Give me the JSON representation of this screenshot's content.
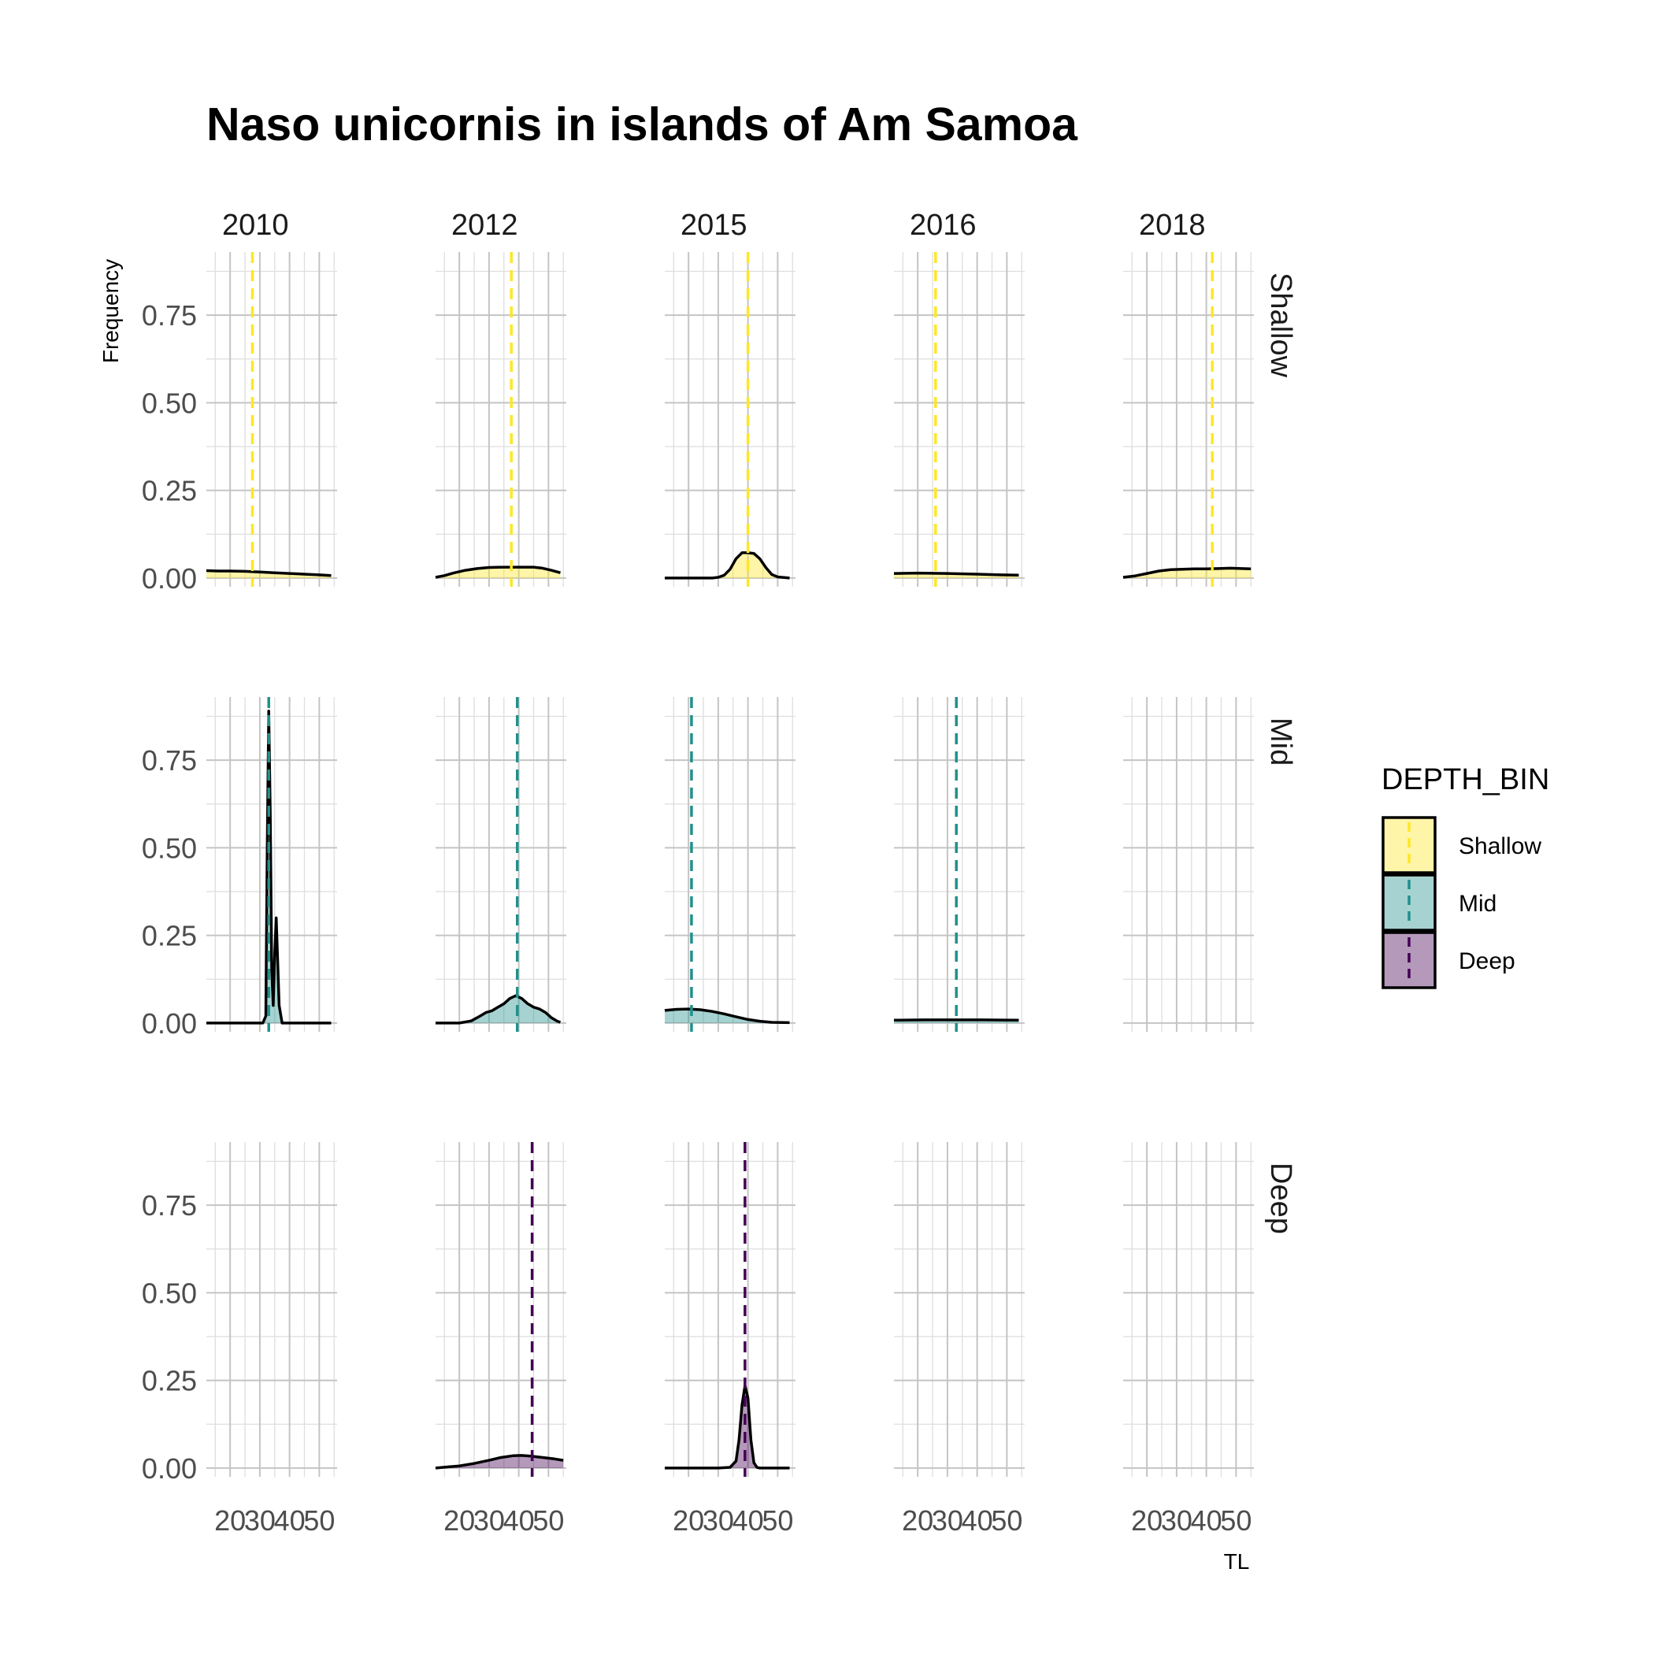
{
  "chart_data": {
    "type": "area",
    "title": "Naso unicornis in islands of Am Samoa",
    "xlabel": "TL",
    "ylabel": "Frequency",
    "columns": [
      "2010",
      "2012",
      "2015",
      "2016",
      "2018"
    ],
    "rows": [
      "Shallow",
      "Mid",
      "Deep"
    ],
    "xlim": [
      12,
      56
    ],
    "ylim": [
      -0.025,
      0.93
    ],
    "x_ticks": [
      20,
      30,
      40,
      50
    ],
    "x_tick_labels": [
      "20",
      "30",
      "40",
      "50"
    ],
    "y_ticks": [
      0,
      0.25,
      0.5,
      0.75
    ],
    "y_tick_labels": [
      "0.00",
      "0.25",
      "0.50",
      "0.75"
    ],
    "grid": true,
    "legend": {
      "title": "DEPTH_BIN",
      "placement": "right",
      "items": [
        {
          "label": "Shallow",
          "color": "#FDE725"
        },
        {
          "label": "Mid",
          "color": "#21908C"
        },
        {
          "label": "Deep",
          "color": "#440154"
        }
      ]
    },
    "panels": [
      {
        "column": "2010",
        "row": "Shallow",
        "mean": 27.5,
        "density": [
          [
            12,
            0.021
          ],
          [
            16,
            0.02
          ],
          [
            20,
            0.02
          ],
          [
            25,
            0.019
          ],
          [
            30,
            0.017
          ],
          [
            35,
            0.015
          ],
          [
            40,
            0.013
          ],
          [
            45,
            0.011
          ],
          [
            50,
            0.009
          ],
          [
            54,
            0.007
          ]
        ]
      },
      {
        "column": "2012",
        "row": "Shallow",
        "mean": 37.5,
        "density": [
          [
            12,
            0.002
          ],
          [
            15,
            0.007
          ],
          [
            18,
            0.014
          ],
          [
            22,
            0.022
          ],
          [
            26,
            0.027
          ],
          [
            30,
            0.03
          ],
          [
            35,
            0.031
          ],
          [
            40,
            0.031
          ],
          [
            45,
            0.031
          ],
          [
            48,
            0.028
          ],
          [
            51,
            0.022
          ],
          [
            54,
            0.015
          ]
        ]
      },
      {
        "column": "2015",
        "row": "Shallow",
        "mean": 40.0,
        "density": [
          [
            12,
            0.0
          ],
          [
            20,
            0.0
          ],
          [
            28,
            0.0
          ],
          [
            30,
            0.002
          ],
          [
            32,
            0.008
          ],
          [
            34,
            0.025
          ],
          [
            36,
            0.055
          ],
          [
            38,
            0.072
          ],
          [
            40,
            0.072
          ],
          [
            42,
            0.07
          ],
          [
            44,
            0.055
          ],
          [
            46,
            0.03
          ],
          [
            48,
            0.01
          ],
          [
            50,
            0.003
          ],
          [
            54,
            0.0
          ]
        ]
      },
      {
        "column": "2016",
        "row": "Shallow",
        "mean": 26.0,
        "density": [
          [
            12,
            0.013
          ],
          [
            20,
            0.014
          ],
          [
            30,
            0.013
          ],
          [
            40,
            0.011
          ],
          [
            48,
            0.009
          ],
          [
            54,
            0.008
          ]
        ]
      },
      {
        "column": "2018",
        "row": "Shallow",
        "mean": 42.0,
        "density": [
          [
            12,
            0.002
          ],
          [
            16,
            0.006
          ],
          [
            20,
            0.013
          ],
          [
            24,
            0.02
          ],
          [
            28,
            0.024
          ],
          [
            32,
            0.025
          ],
          [
            36,
            0.026
          ],
          [
            40,
            0.026
          ],
          [
            44,
            0.027
          ],
          [
            48,
            0.028
          ],
          [
            52,
            0.027
          ],
          [
            55,
            0.026
          ]
        ]
      },
      {
        "column": "2010",
        "row": "Mid",
        "mean": 33.0,
        "density": [
          [
            12,
            0.0
          ],
          [
            28,
            0.0
          ],
          [
            31,
            0.0
          ],
          [
            32,
            0.02
          ],
          [
            32.5,
            0.5
          ],
          [
            33,
            0.89
          ],
          [
            33.5,
            0.6
          ],
          [
            34,
            0.15
          ],
          [
            34.5,
            0.05
          ],
          [
            35,
            0.2
          ],
          [
            35.5,
            0.3
          ],
          [
            36,
            0.18
          ],
          [
            36.5,
            0.05
          ],
          [
            37.5,
            0.0
          ],
          [
            54,
            0.0
          ]
        ]
      },
      {
        "column": "2012",
        "row": "Mid",
        "mean": 39.5,
        "density": [
          [
            12,
            0.0
          ],
          [
            20,
            0.0
          ],
          [
            24,
            0.006
          ],
          [
            27,
            0.02
          ],
          [
            29,
            0.03
          ],
          [
            31,
            0.035
          ],
          [
            33,
            0.045
          ],
          [
            35,
            0.055
          ],
          [
            37,
            0.07
          ],
          [
            39,
            0.078
          ],
          [
            41,
            0.07
          ],
          [
            43,
            0.055
          ],
          [
            45,
            0.045
          ],
          [
            47,
            0.04
          ],
          [
            49,
            0.03
          ],
          [
            51,
            0.015
          ],
          [
            53,
            0.005
          ],
          [
            54,
            0.002
          ]
        ]
      },
      {
        "column": "2015",
        "row": "Mid",
        "mean": 21.0,
        "density": [
          [
            12,
            0.036
          ],
          [
            16,
            0.039
          ],
          [
            20,
            0.04
          ],
          [
            24,
            0.038
          ],
          [
            28,
            0.033
          ],
          [
            32,
            0.026
          ],
          [
            36,
            0.018
          ],
          [
            40,
            0.01
          ],
          [
            44,
            0.005
          ],
          [
            48,
            0.002
          ],
          [
            54,
            0.001
          ]
        ]
      },
      {
        "column": "2016",
        "row": "Mid",
        "mean": 33.0,
        "density": [
          [
            12,
            0.008
          ],
          [
            22,
            0.009
          ],
          [
            32,
            0.009
          ],
          [
            42,
            0.009
          ],
          [
            54,
            0.008
          ]
        ]
      },
      {
        "column": "2018",
        "row": "Mid",
        "mean": null,
        "density": []
      },
      {
        "column": "2010",
        "row": "Deep",
        "mean": null,
        "density": []
      },
      {
        "column": "2012",
        "row": "Deep",
        "mean": 44.5,
        "density": [
          [
            12,
            0.0
          ],
          [
            16,
            0.003
          ],
          [
            20,
            0.006
          ],
          [
            25,
            0.013
          ],
          [
            30,
            0.022
          ],
          [
            34,
            0.03
          ],
          [
            38,
            0.035
          ],
          [
            41,
            0.036
          ],
          [
            44,
            0.034
          ],
          [
            48,
            0.03
          ],
          [
            52,
            0.026
          ],
          [
            55,
            0.022
          ]
        ]
      },
      {
        "column": "2015",
        "row": "Deep",
        "mean": 39.0,
        "density": [
          [
            12,
            0.0
          ],
          [
            30,
            0.0
          ],
          [
            34,
            0.002
          ],
          [
            36,
            0.02
          ],
          [
            37,
            0.08
          ],
          [
            38,
            0.18
          ],
          [
            39,
            0.235
          ],
          [
            40,
            0.2
          ],
          [
            41,
            0.08
          ],
          [
            42,
            0.015
          ],
          [
            43,
            0.002
          ],
          [
            44,
            0.0
          ],
          [
            54,
            0.0
          ]
        ]
      },
      {
        "column": "2016",
        "row": "Deep",
        "mean": null,
        "density": []
      },
      {
        "column": "2018",
        "row": "Deep",
        "mean": null,
        "density": []
      }
    ]
  }
}
